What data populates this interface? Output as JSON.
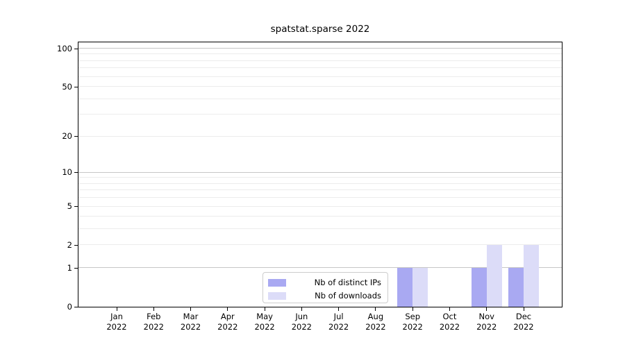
{
  "title": "spatstat.sparse 2022",
  "colors": {
    "grid_major": "#c6c6c6",
    "grid_minor": "#ececec",
    "axis": "#000000",
    "background": "#ffffff",
    "legend_border": "#cccccc",
    "distinct_ips_bar": "#a9a9f2",
    "downloads_bar": "#dcdcf8"
  },
  "chart_data": {
    "type": "bar",
    "title": "spatstat.sparse 2022",
    "categories": [
      "Jan 2022",
      "Feb 2022",
      "Mar 2022",
      "Apr 2022",
      "May 2022",
      "Jun 2022",
      "Jul 2022",
      "Aug 2022",
      "Sep 2022",
      "Oct 2022",
      "Nov 2022",
      "Dec 2022"
    ],
    "series": [
      {
        "name": "Nb of distinct IPs",
        "color": "#a9a9f2",
        "values": [
          0,
          0,
          0,
          0,
          0,
          0,
          0,
          0,
          1,
          0,
          1,
          1
        ]
      },
      {
        "name": "Nb of downloads",
        "color": "#dcdcf8",
        "values": [
          0,
          0,
          0,
          0,
          0,
          0,
          0,
          0,
          1,
          0,
          2,
          2
        ]
      }
    ],
    "xlabel": "",
    "ylabel": "",
    "yscale": "log10(1+y)",
    "ylim": [
      0,
      112
    ],
    "y_tick_labels": [
      0,
      1,
      2,
      5,
      10,
      20,
      50,
      100
    ],
    "y_major_gridlines": [
      1,
      10,
      100
    ],
    "y_minor_gridlines": [
      2,
      3,
      4,
      5,
      6,
      7,
      8,
      9,
      20,
      30,
      40,
      50,
      60,
      70,
      80,
      90
    ],
    "grid": "on",
    "legend_position": "lower center"
  }
}
